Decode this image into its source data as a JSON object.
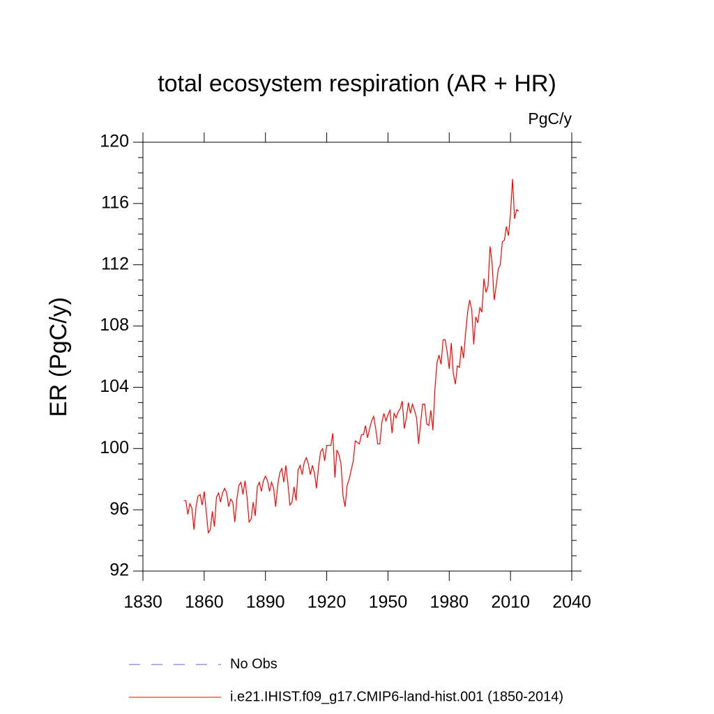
{
  "chart_data": {
    "type": "line",
    "title": "total ecosystem respiration (AR + HR)",
    "units_label": "PgC/y",
    "y_label": "ER  (PgC/y)",
    "x": [
      1850,
      1851,
      1852,
      1853,
      1854,
      1855,
      1856,
      1857,
      1858,
      1859,
      1860,
      1861,
      1862,
      1863,
      1864,
      1865,
      1866,
      1867,
      1868,
      1869,
      1870,
      1871,
      1872,
      1873,
      1874,
      1875,
      1876,
      1877,
      1878,
      1879,
      1880,
      1881,
      1882,
      1883,
      1884,
      1885,
      1886,
      1887,
      1888,
      1889,
      1890,
      1891,
      1892,
      1893,
      1894,
      1895,
      1896,
      1897,
      1898,
      1899,
      1900,
      1901,
      1902,
      1903,
      1904,
      1905,
      1906,
      1907,
      1908,
      1909,
      1910,
      1911,
      1912,
      1913,
      1914,
      1915,
      1916,
      1917,
      1918,
      1919,
      1920,
      1921,
      1922,
      1923,
      1924,
      1925,
      1926,
      1927,
      1928,
      1929,
      1930,
      1931,
      1932,
      1933,
      1934,
      1935,
      1936,
      1937,
      1938,
      1939,
      1940,
      1941,
      1942,
      1943,
      1944,
      1945,
      1946,
      1947,
      1948,
      1949,
      1950,
      1951,
      1952,
      1953,
      1954,
      1955,
      1956,
      1957,
      1958,
      1959,
      1960,
      1961,
      1962,
      1963,
      1964,
      1965,
      1966,
      1967,
      1968,
      1969,
      1970,
      1971,
      1972,
      1973,
      1974,
      1975,
      1976,
      1977,
      1978,
      1979,
      1980,
      1981,
      1982,
      1983,
      1984,
      1985,
      1986,
      1987,
      1988,
      1989,
      1990,
      1991,
      1992,
      1993,
      1994,
      1995,
      1996,
      1997,
      1998,
      1999,
      2000,
      2001,
      2002,
      2003,
      2004,
      2005,
      2006,
      2007,
      2008,
      2009,
      2010,
      2011,
      2012,
      2013,
      2014
    ],
    "series": [
      {
        "name": "No Obs",
        "color": "#6a5acd",
        "dash": true,
        "values": [
          null,
          null,
          null,
          null,
          null,
          null,
          null,
          null,
          null,
          null,
          null,
          null,
          null,
          null,
          null,
          null,
          null,
          null,
          null,
          null,
          null,
          null,
          null,
          null,
          null,
          null,
          null,
          null,
          null,
          null,
          null,
          null,
          null,
          null,
          null,
          null,
          null,
          null,
          null,
          null,
          null,
          null,
          null,
          null,
          null,
          null,
          null,
          null,
          null,
          null,
          null,
          null,
          null,
          null,
          null,
          null,
          null,
          null,
          null,
          null,
          null,
          null,
          null,
          null,
          null,
          null,
          null,
          null,
          null,
          null,
          null,
          null,
          null,
          null,
          null,
          null,
          null,
          null,
          null,
          null,
          null,
          null,
          null,
          null,
          null,
          null,
          null,
          null,
          null,
          null,
          null,
          null,
          null,
          null,
          null,
          null,
          null,
          null,
          null,
          null,
          null,
          null,
          null,
          null,
          null,
          null,
          null,
          null,
          null,
          null,
          null,
          null,
          null,
          null,
          null,
          null,
          null,
          null,
          null,
          null,
          null,
          null,
          null,
          null,
          null,
          null,
          null,
          null,
          null,
          null,
          null,
          null,
          null,
          null,
          null,
          null,
          null,
          null,
          null,
          null,
          null,
          null,
          null,
          null,
          null,
          null,
          null,
          null,
          null,
          null,
          null,
          null,
          null,
          null,
          null,
          null,
          null,
          null,
          null,
          null,
          null,
          null,
          null,
          null,
          null
        ]
      },
      {
        "name": "i.e21.IHIST.f09_g17.CMIP6-land-hist.001 (1850-2014)",
        "color": "#ff0000",
        "dash": false,
        "values": [
          96.6,
          96.6,
          95.7,
          96.4,
          96.1,
          94.7,
          96.2,
          96.9,
          97.0,
          96.3,
          97.2,
          95.9,
          94.5,
          94.7,
          95.9,
          94.9,
          96.8,
          97.1,
          96.5,
          97.1,
          97.4,
          97.1,
          96.2,
          96.7,
          96.5,
          95.2,
          96.7,
          97.6,
          97.8,
          97.0,
          97.9,
          96.8,
          95.2,
          95.4,
          96.5,
          95.6,
          97.5,
          97.8,
          97.2,
          97.9,
          98.2,
          97.9,
          97.2,
          97.8,
          97.4,
          96.2,
          97.6,
          98.4,
          98.7,
          97.8,
          98.9,
          97.7,
          96.3,
          96.5,
          97.5,
          96.6,
          98.6,
          98.9,
          98.3,
          99.1,
          99.4,
          99.0,
          98.3,
          98.9,
          98.4,
          97.4,
          98.8,
          99.8,
          100.0,
          99.2,
          100.2,
          100.2,
          100.2,
          101.0,
          98.1,
          99.9,
          99.6,
          99.0,
          96.9,
          96.2,
          97.6,
          98.0,
          98.6,
          99.2,
          100.5,
          100.4,
          100.3,
          100.9,
          100.9,
          101.5,
          100.7,
          101.3,
          101.8,
          102.1,
          101.3,
          100.3,
          100.3,
          101.7,
          102.3,
          101.8,
          102.2,
          102.5,
          101.0,
          102.3,
          102.0,
          102.4,
          102.6,
          103.1,
          101.3,
          102.0,
          103.0,
          102.3,
          102.9,
          102.5,
          102.0,
          100.3,
          101.7,
          102.9,
          102.9,
          101.6,
          101.5,
          102.5,
          101.2,
          103.9,
          105.6,
          106.1,
          105.5,
          107.1,
          107.1,
          106.3,
          105.2,
          106.9,
          104.9,
          104.2,
          105.4,
          105.3,
          106.7,
          105.9,
          107.5,
          108.9,
          109.7,
          109.1,
          106.8,
          108.6,
          108.2,
          109.2,
          108.9,
          111.1,
          110.2,
          110.6,
          113.2,
          112.1,
          109.7,
          110.6,
          111.7,
          112.0,
          113.5,
          113.6,
          114.5,
          113.9,
          115.3,
          117.6,
          115.0,
          115.6,
          115.5
        ]
      }
    ],
    "xlim": [
      1830,
      2040
    ],
    "xticks": [
      1830,
      1860,
      1890,
      1920,
      1950,
      1980,
      2010,
      2040
    ],
    "ylim": [
      92,
      120
    ],
    "yticks": [
      92,
      96,
      100,
      104,
      108,
      112,
      116,
      120
    ],
    "yminorticks": [
      93,
      94,
      95,
      97,
      98,
      99,
      101,
      102,
      103,
      105,
      106,
      107,
      109,
      110,
      111,
      113,
      114,
      115,
      117,
      118,
      119
    ],
    "grid": false
  }
}
